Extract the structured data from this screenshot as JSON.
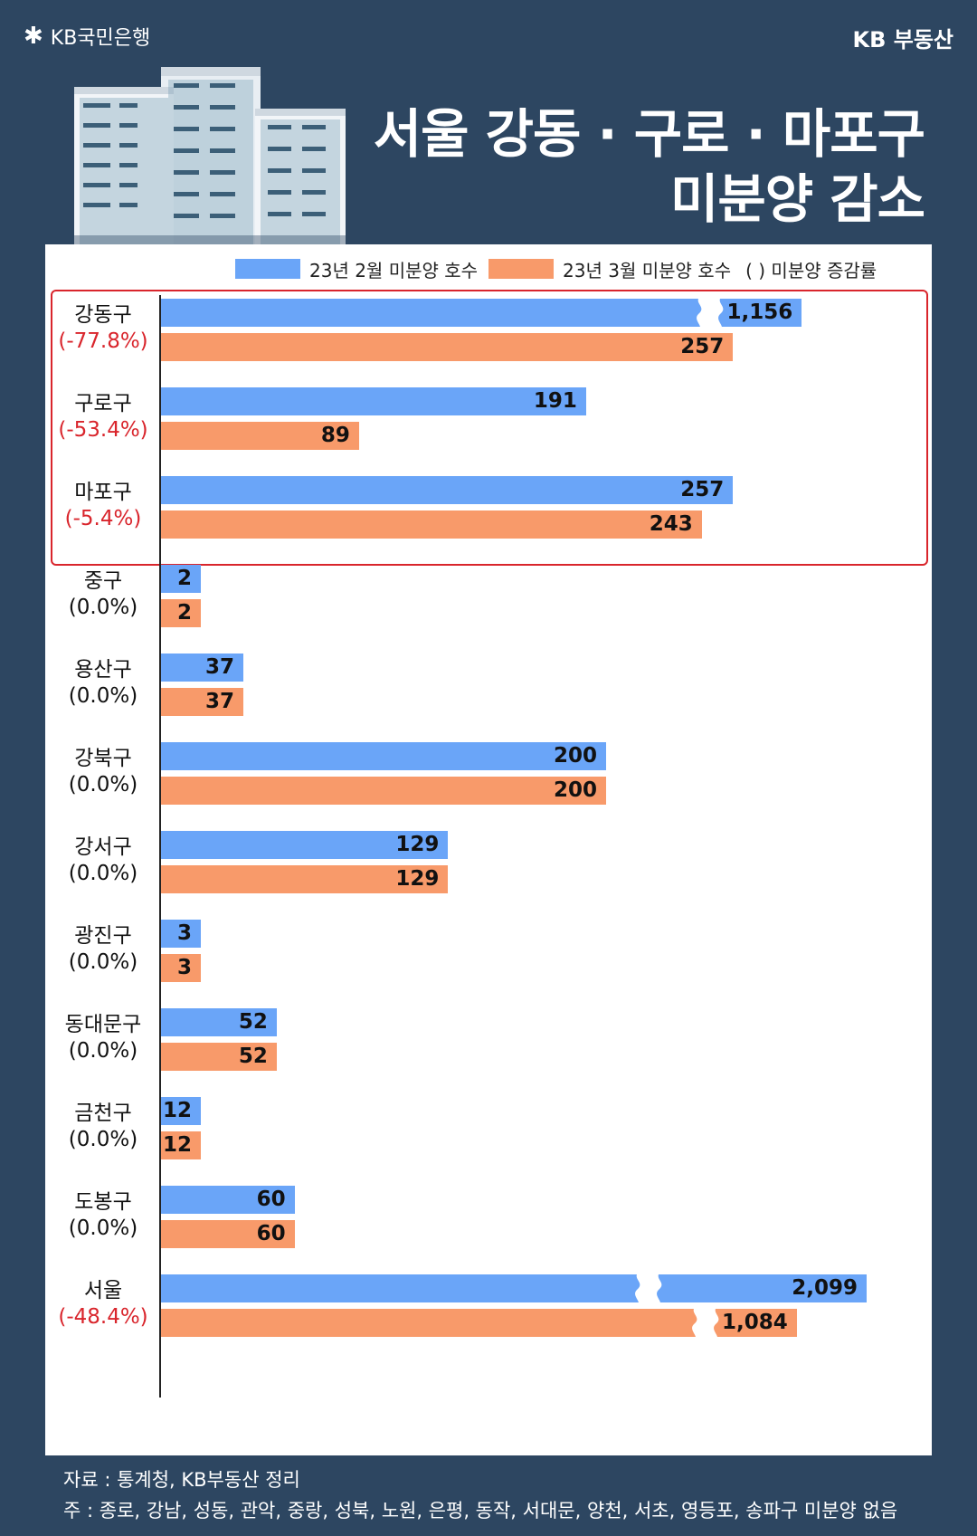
{
  "header": {
    "brand_left": "KB국민은행",
    "brand_right": "KB 부동산",
    "title_line1": "서울 강동 · 구로 · 마포구",
    "title_line2": "미분양 감소"
  },
  "legend": {
    "feb": "23년 2월 미분양 호수",
    "mar": "23년 3월 미분양 호수",
    "rate": "(        ) 미분양 증감률"
  },
  "colors": {
    "feb": "#6aa5f8",
    "mar": "#f89a6a",
    "highlight": "#d9252c",
    "negative": "#d9252c"
  },
  "chart_data": {
    "type": "bar",
    "orientation": "horizontal",
    "categories": [
      "강동구",
      "구로구",
      "마포구",
      "중구",
      "용산구",
      "강북구",
      "강서구",
      "광진구",
      "동대문구",
      "금천구",
      "도봉구",
      "서울"
    ],
    "change_rates": [
      "(-77.8%)",
      "(-53.4%)",
      "(-5.4%)",
      "(0.0%)",
      "(0.0%)",
      "(0.0%)",
      "(0.0%)",
      "(0.0%)",
      "(0.0%)",
      "(0.0%)",
      "(0.0%)",
      "(-48.4%)"
    ],
    "series": [
      {
        "name": "23년 2월 미분양 호수",
        "values": [
          1156,
          191,
          257,
          2,
          37,
          200,
          129,
          3,
          52,
          12,
          60,
          2099
        ],
        "labels": [
          "1,156",
          "191",
          "257",
          "2",
          "37",
          "200",
          "129",
          "3",
          "52",
          "12",
          "60",
          "2,099"
        ]
      },
      {
        "name": "23년 3월 미분양 호수",
        "values": [
          257,
          89,
          243,
          2,
          37,
          200,
          129,
          3,
          52,
          12,
          60,
          1084
        ],
        "labels": [
          "257",
          "89",
          "243",
          "2",
          "37",
          "200",
          "129",
          "3",
          "52",
          "12",
          "60",
          "1,084"
        ]
      }
    ],
    "axis_break": true,
    "highlighted_categories": [
      "강동구",
      "구로구",
      "마포구"
    ]
  },
  "footer": {
    "source": "자료 : 통계청, KB부동산 정리",
    "note": "주 : 종로, 강남, 성동, 관악, 중랑, 성북, 노원, 은평, 동작, 서대문, 양천, 서초, 영등포, 송파구 미분양 없음"
  }
}
